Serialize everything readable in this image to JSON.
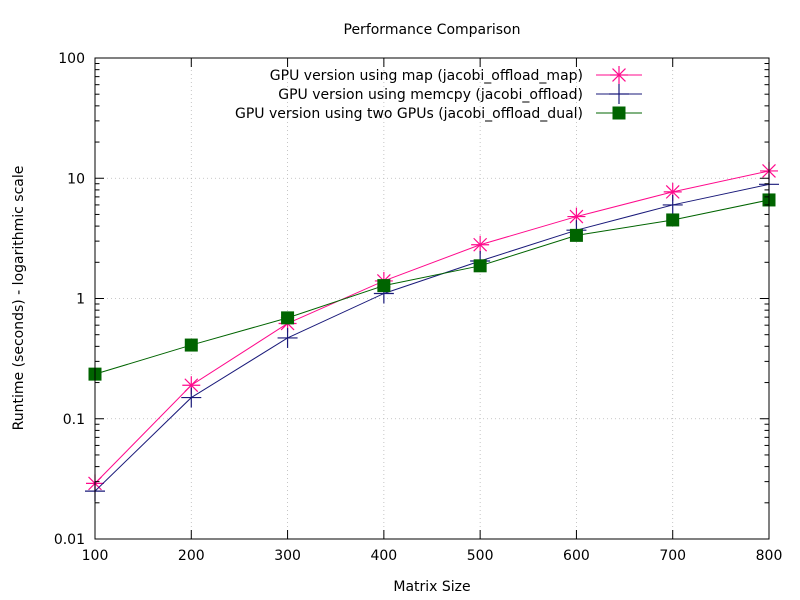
{
  "chart_data": {
    "type": "line",
    "title": "Performance Comparison",
    "xlabel": "Matrix Size",
    "ylabel": "Runtime (seconds) - logarithmic scale",
    "x": [
      100,
      200,
      300,
      400,
      500,
      600,
      700,
      800
    ],
    "xlim": [
      100,
      800
    ],
    "xticks": [
      "100",
      "200",
      "300",
      "400",
      "500",
      "600",
      "700",
      "800"
    ],
    "ylim": [
      0.01,
      100
    ],
    "yscale": "log",
    "yticks": [
      {
        "value": 0.01,
        "label": "0.01"
      },
      {
        "value": 0.1,
        "label": "0.1"
      },
      {
        "value": 1,
        "label": "1"
      },
      {
        "value": 10,
        "label": "10"
      },
      {
        "value": 100,
        "label": "100"
      }
    ],
    "grid": true,
    "legend_position": "top-right",
    "series": [
      {
        "name": "GPU version using map (jacobi_offload_map)",
        "color": "#ff0a8c",
        "marker": "asterisk",
        "values": [
          0.029,
          0.19,
          0.62,
          1.4,
          2.8,
          4.8,
          7.7,
          11.5
        ]
      },
      {
        "name": "GPU version using memcpy (jacobi_offload)",
        "color": "#1a1a7a",
        "marker": "plus",
        "values": [
          0.025,
          0.15,
          0.47,
          1.1,
          2.05,
          3.7,
          6.0,
          8.9
        ]
      },
      {
        "name": "GPU version using two GPUs (jacobi_offload_dual)",
        "color": "#006400",
        "marker": "square",
        "values": [
          0.235,
          0.41,
          0.69,
          1.28,
          1.87,
          3.35,
          4.5,
          6.6
        ]
      }
    ]
  }
}
